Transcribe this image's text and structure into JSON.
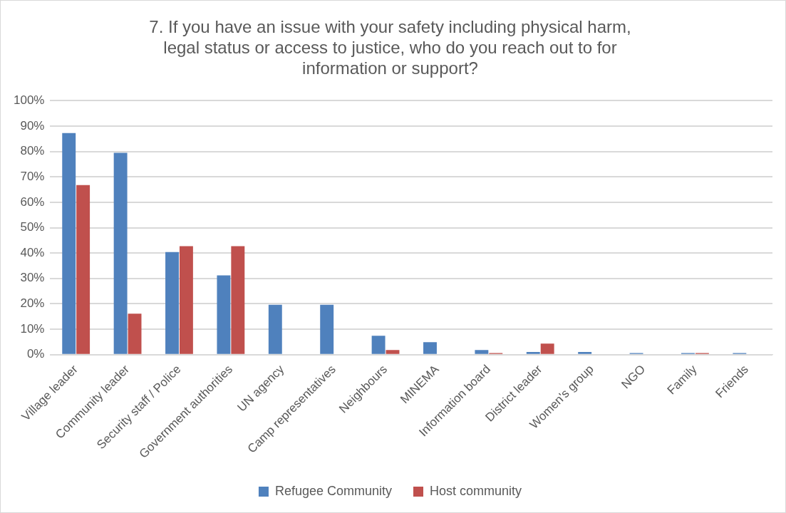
{
  "chart_data": {
    "type": "bar",
    "title": [
      "7. If you have an issue with your safety including physical harm,",
      "legal status or access to justice, who do you reach out to for",
      "information or support?"
    ],
    "categories": [
      "Village leader",
      "Community leader",
      "Security staff / Police",
      "Government authorities",
      "UN agency",
      "Camp representatives",
      "Neighbours",
      "MINEMA",
      "Information board",
      "District leader",
      "Women's group",
      "NGO",
      "Family",
      "Friends"
    ],
    "series": [
      {
        "name": "Refugee Community",
        "color": "#4f81bd",
        "values": [
          87.3,
          79.5,
          40.4,
          31.2,
          19.6,
          19.6,
          7.4,
          4.9,
          1.8,
          1.0,
          1.0,
          0.6,
          0.6,
          0.6
        ]
      },
      {
        "name": "Host community",
        "color": "#c0504d",
        "values": [
          66.8,
          16.1,
          42.7,
          42.7,
          0,
          0,
          1.8,
          0,
          0.6,
          4.3,
          0,
          0,
          0.6,
          0
        ]
      }
    ],
    "ylim": [
      0,
      100
    ],
    "yticks": [
      {
        "value": 0,
        "label": "0%"
      },
      {
        "value": 10,
        "label": "10%"
      },
      {
        "value": 20,
        "label": "20%"
      },
      {
        "value": 30,
        "label": "30%"
      },
      {
        "value": 40,
        "label": "40%"
      },
      {
        "value": 50,
        "label": "50%"
      },
      {
        "value": 60,
        "label": "60%"
      },
      {
        "value": 70,
        "label": "70%"
      },
      {
        "value": 80,
        "label": "80%"
      },
      {
        "value": 90,
        "label": "90%"
      },
      {
        "value": 100,
        "label": "100%"
      }
    ],
    "grid": "y",
    "legend": "bottom"
  }
}
